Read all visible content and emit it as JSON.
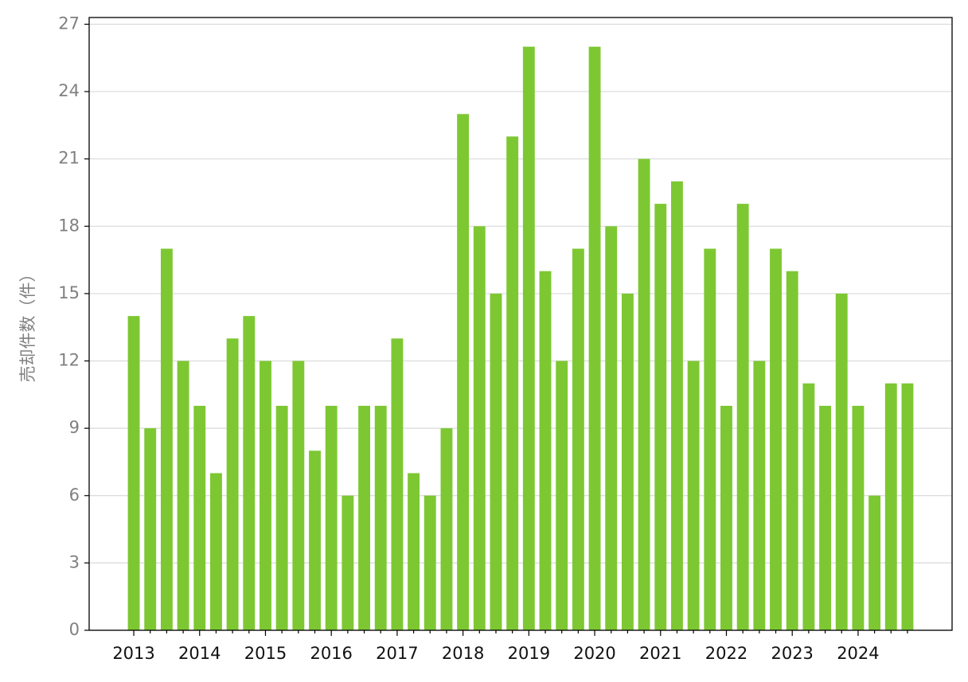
{
  "chart_data": {
    "type": "bar",
    "y_label": "売却件数（件）",
    "categories": [
      "2013",
      null,
      null,
      null,
      "2014",
      null,
      null,
      null,
      "2015",
      null,
      null,
      null,
      "2016",
      null,
      null,
      null,
      "2017",
      null,
      null,
      null,
      "2018",
      null,
      null,
      null,
      "2019",
      null,
      null,
      null,
      "2020",
      null,
      null,
      null,
      "2021",
      null,
      null,
      null,
      "2022",
      null,
      null,
      null,
      "2023",
      null,
      null,
      null,
      "2024",
      null,
      null,
      null
    ],
    "values": [
      14,
      9,
      17,
      12,
      10,
      7,
      13,
      14,
      12,
      10,
      12,
      8,
      10,
      6,
      10,
      10,
      13,
      7,
      6,
      9,
      23,
      18,
      15,
      22,
      26,
      16,
      12,
      17,
      26,
      18,
      15,
      21,
      19,
      20,
      12,
      17,
      10,
      19,
      12,
      17,
      16,
      11,
      10,
      15,
      10,
      6,
      11,
      11
    ],
    "color": "#7dc832",
    "ylim": [
      0,
      27.3
    ],
    "yticks": [
      0,
      3,
      6,
      9,
      12,
      15,
      18,
      21,
      24,
      27
    ],
    "grid": true
  }
}
